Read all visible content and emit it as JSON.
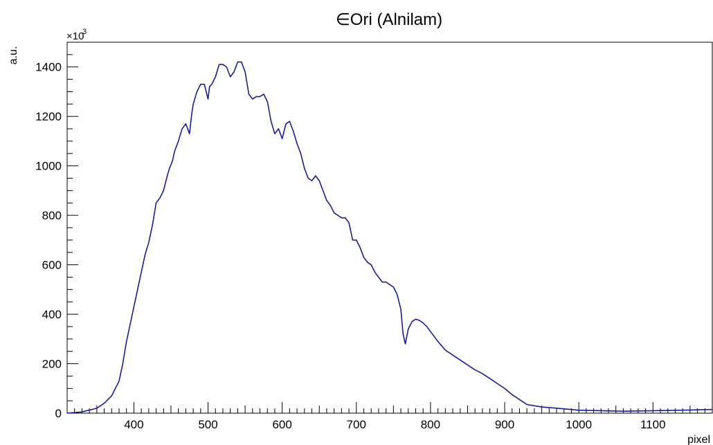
{
  "chart_data": {
    "type": "line",
    "title": "∈Ori (Alnilam)",
    "xlabel": "pixel",
    "ylabel": "a.u.",
    "y_multiplier": "×10",
    "y_multiplier_exp": "3",
    "xlim": [
      310,
      1180
    ],
    "ylim": [
      0,
      1500
    ],
    "xticks": [
      400,
      500,
      600,
      700,
      800,
      900,
      1000,
      1100
    ],
    "yticks": [
      0,
      200,
      400,
      600,
      800,
      1000,
      1200,
      1400
    ],
    "grid": false,
    "line_color": "#1a1aa0",
    "series": [
      {
        "x": [
          310,
          330,
          350,
          360,
          370,
          380,
          385,
          390,
          395,
          400,
          405,
          410,
          415,
          420,
          425,
          430,
          435,
          440,
          445,
          448,
          452,
          455,
          460,
          465,
          470,
          475,
          478,
          480,
          485,
          490,
          495,
          500,
          502,
          505,
          510,
          515,
          520,
          525,
          530,
          535,
          540,
          545,
          550,
          555,
          560,
          565,
          570,
          575,
          580,
          585,
          590,
          595,
          600,
          605,
          610,
          615,
          620,
          625,
          630,
          635,
          640,
          645,
          650,
          655,
          660,
          665,
          670,
          675,
          680,
          685,
          690,
          695,
          700,
          705,
          710,
          715,
          720,
          725,
          730,
          735,
          740,
          745,
          750,
          755,
          760,
          763,
          766,
          770,
          775,
          780,
          785,
          790,
          795,
          800,
          810,
          820,
          830,
          840,
          850,
          860,
          870,
          880,
          890,
          900,
          910,
          920,
          930,
          940,
          950,
          970,
          1000,
          1030,
          1060,
          1100,
          1140,
          1180
        ],
        "y": [
          0,
          5,
          20,
          40,
          70,
          130,
          200,
          290,
          360,
          430,
          500,
          570,
          640,
          690,
          760,
          850,
          870,
          900,
          960,
          990,
          1020,
          1060,
          1100,
          1150,
          1170,
          1130,
          1210,
          1250,
          1300,
          1330,
          1330,
          1270,
          1320,
          1330,
          1360,
          1410,
          1410,
          1400,
          1360,
          1380,
          1420,
          1420,
          1380,
          1290,
          1270,
          1280,
          1280,
          1290,
          1260,
          1180,
          1130,
          1150,
          1110,
          1170,
          1180,
          1140,
          1090,
          1050,
          990,
          950,
          940,
          960,
          940,
          900,
          860,
          840,
          810,
          800,
          790,
          790,
          770,
          700,
          700,
          670,
          630,
          610,
          600,
          570,
          550,
          530,
          530,
          520,
          510,
          480,
          420,
          320,
          280,
          340,
          370,
          380,
          375,
          365,
          350,
          330,
          290,
          255,
          235,
          215,
          195,
          175,
          160,
          140,
          120,
          100,
          75,
          55,
          35,
          30,
          25,
          20,
          12,
          10,
          8,
          10,
          12,
          15
        ]
      }
    ]
  }
}
